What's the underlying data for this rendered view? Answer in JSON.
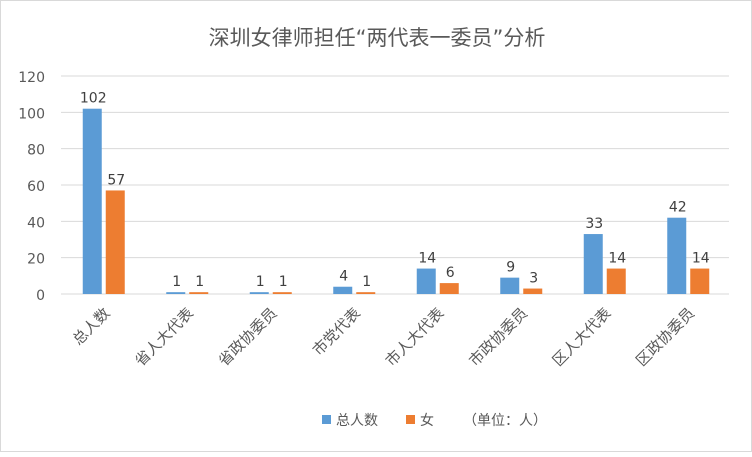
{
  "chart_data": {
    "type": "bar",
    "title": "深圳女律师担任“两代表一委员”分析",
    "categories": [
      "总人数",
      "省人大代表",
      "省政协委员",
      "市党代表",
      "市人大代表",
      "市政协委员",
      "区人大代表",
      "区政协委员"
    ],
    "series": [
      {
        "name": "总人数",
        "color": "#5b9bd5",
        "values": [
          102,
          1,
          1,
          4,
          14,
          9,
          33,
          42
        ]
      },
      {
        "name": "女",
        "color": "#ed7d31",
        "values": [
          57,
          1,
          1,
          1,
          6,
          3,
          14,
          14
        ]
      }
    ],
    "legend_note": "（单位：人）",
    "ylim": [
      0,
      120
    ],
    "yticks": [
      "0",
      "20",
      "40",
      "60",
      "80",
      "100",
      "120"
    ],
    "grid": true,
    "legend_position": "bottom",
    "data_labels": true
  }
}
